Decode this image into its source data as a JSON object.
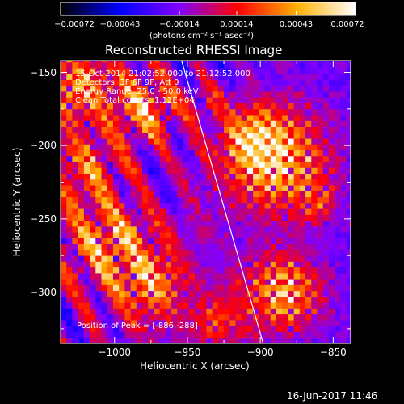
{
  "chart_data": {
    "type": "heatmap",
    "title": "Reconstructed RHESSI Image",
    "xlabel": "Heliocentric X (arcsec)",
    "ylabel": "Heliocentric Y (arcsec)",
    "xlim": [
      -1037,
      -838
    ],
    "ylim": [
      -335,
      -142
    ],
    "xticks": [
      -1000,
      -950,
      -900,
      -850
    ],
    "xtick_labels": [
      "−1000",
      "−950",
      "−900",
      "−850"
    ],
    "yticks": [
      -150,
      -200,
      -250,
      -300
    ],
    "ytick_labels": [
      "−150",
      "−200",
      "−250",
      "−300"
    ],
    "grid": false,
    "colorbar": {
      "range": [
        -0.00072,
        0.00072
      ],
      "ticks": [
        -0.00072,
        -0.00043,
        -0.00014,
        0.00014,
        0.00043,
        0.00072
      ],
      "tick_labels": [
        "−0.00072",
        "−0.00043",
        "−0.00014",
        "0.00014",
        "0.00043",
        "0.00072"
      ],
      "colormap": [
        "#000000",
        "#0000ff",
        "#7f00ff",
        "#ff0000",
        "#ffb000",
        "#ffffff"
      ]
    },
    "units_label": "(photons cm⁻² s⁻¹ asec⁻²)",
    "annotations": [
      "15-Oct-2014 21:02:52.000 to 21:12:52.000",
      "Detectors: 3F 6F 9F, Att 0",
      "Energy Range: 25.0 - 50.0 keV",
      "Clean    Total counts: 1.12E+04"
    ],
    "peak_label": "Position of Peak = [-886,-288]",
    "limb_line": {
      "x": [
        -954,
        -898
      ],
      "y": [
        -142,
        -335
      ]
    }
  },
  "footer": {
    "timestamp": "16-Jun-2017 11:46"
  },
  "colors": {
    "background": "#000000",
    "foreground": "#ffffff"
  }
}
